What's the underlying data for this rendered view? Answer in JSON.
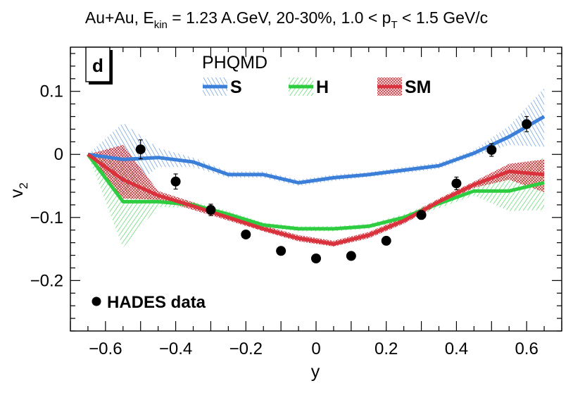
{
  "chart_data": {
    "type": "line",
    "title": {
      "pre": "Au+Au, E",
      "sub1": "kin",
      "mid": " = 1.23 A.GeV, 20-30%, 1.0 < p",
      "sub2": "T",
      "post": " < 1.5 GeV/c"
    },
    "panel_label": "d",
    "model_label": "PHQMD",
    "xlabel": "y",
    "ylabel": {
      "base": "v",
      "sub": "2"
    },
    "xlim": [
      -0.7,
      0.7
    ],
    "ylim": [
      -0.28,
      0.17
    ],
    "x_ticks": [
      -0.6,
      -0.4,
      -0.2,
      0,
      0.2,
      0.4,
      0.6
    ],
    "x_tick_labels": [
      "−0.6",
      "−0.4",
      "−0.2",
      "0",
      "0.2",
      "0.4",
      "0.6"
    ],
    "y_ticks": [
      0.1,
      0,
      -0.1,
      -0.2
    ],
    "y_tick_labels": [
      "0.1",
      "0",
      "−0.1",
      "−0.2"
    ],
    "grid": false,
    "legend_position": "top",
    "series": [
      {
        "name": "S",
        "color": "#3b7fd9",
        "x": [
          -0.65,
          -0.55,
          -0.45,
          -0.35,
          -0.25,
          -0.15,
          -0.05,
          0.05,
          0.15,
          0.25,
          0.35,
          0.45,
          0.55,
          0.65
        ],
        "y": [
          0.0,
          -0.008,
          -0.005,
          -0.012,
          -0.032,
          -0.032,
          -0.045,
          -0.037,
          -0.032,
          -0.025,
          -0.018,
          0.002,
          0.028,
          0.06
        ],
        "band_low": [
          0.0,
          -0.065,
          -0.02,
          -0.02,
          -0.037,
          -0.037,
          -0.05,
          -0.042,
          -0.036,
          -0.03,
          -0.023,
          -0.003,
          0.015,
          0.012
        ],
        "band_high": [
          0.0,
          0.05,
          0.01,
          -0.005,
          -0.027,
          -0.027,
          -0.04,
          -0.032,
          -0.028,
          -0.02,
          -0.013,
          0.007,
          0.045,
          0.105
        ]
      },
      {
        "name": "H",
        "color": "#2ecc40",
        "x": [
          -0.65,
          -0.55,
          -0.45,
          -0.35,
          -0.25,
          -0.15,
          -0.05,
          0.05,
          0.15,
          0.25,
          0.35,
          0.45,
          0.55,
          0.65
        ],
        "y": [
          0.0,
          -0.075,
          -0.075,
          -0.08,
          -0.095,
          -0.112,
          -0.118,
          -0.118,
          -0.114,
          -0.1,
          -0.078,
          -0.058,
          -0.058,
          -0.045
        ],
        "band_low": [
          0.0,
          -0.148,
          -0.083,
          -0.085,
          -0.1,
          -0.116,
          -0.122,
          -0.122,
          -0.118,
          -0.105,
          -0.085,
          -0.065,
          -0.09,
          -0.088
        ],
        "band_high": [
          0.0,
          -0.01,
          -0.067,
          -0.075,
          -0.09,
          -0.108,
          -0.114,
          -0.114,
          -0.11,
          -0.095,
          -0.072,
          -0.05,
          -0.03,
          -0.005
        ]
      },
      {
        "name": "SM",
        "color": "#d9323c",
        "x": [
          -0.65,
          -0.55,
          -0.45,
          -0.35,
          -0.25,
          -0.15,
          -0.05,
          0.05,
          0.15,
          0.25,
          0.35,
          0.45,
          0.55,
          0.65
        ],
        "y": [
          0.0,
          -0.04,
          -0.065,
          -0.082,
          -0.1,
          -0.118,
          -0.133,
          -0.142,
          -0.128,
          -0.105,
          -0.075,
          -0.048,
          -0.027,
          -0.032
        ],
        "band_low": [
          0.0,
          -0.07,
          -0.072,
          -0.088,
          -0.105,
          -0.122,
          -0.138,
          -0.146,
          -0.133,
          -0.11,
          -0.08,
          -0.053,
          -0.04,
          -0.06
        ],
        "band_high": [
          0.0,
          0.015,
          -0.058,
          -0.076,
          -0.095,
          -0.113,
          -0.128,
          -0.137,
          -0.123,
          -0.1,
          -0.07,
          -0.043,
          -0.015,
          -0.008
        ]
      }
    ],
    "data_points": {
      "name": "HADES data",
      "x": [
        -0.5,
        -0.4,
        -0.3,
        -0.2,
        -0.1,
        0.0,
        0.1,
        0.2,
        0.3,
        0.4,
        0.5,
        0.6
      ],
      "y": [
        0.008,
        -0.043,
        -0.088,
        -0.127,
        -0.153,
        -0.165,
        -0.161,
        -0.137,
        -0.096,
        -0.046,
        0.007,
        0.048
      ],
      "err": [
        0.015,
        0.012,
        0.009,
        0.006,
        0.005,
        0.004,
        0.004,
        0.005,
        0.007,
        0.01,
        0.01,
        0.012
      ]
    }
  }
}
